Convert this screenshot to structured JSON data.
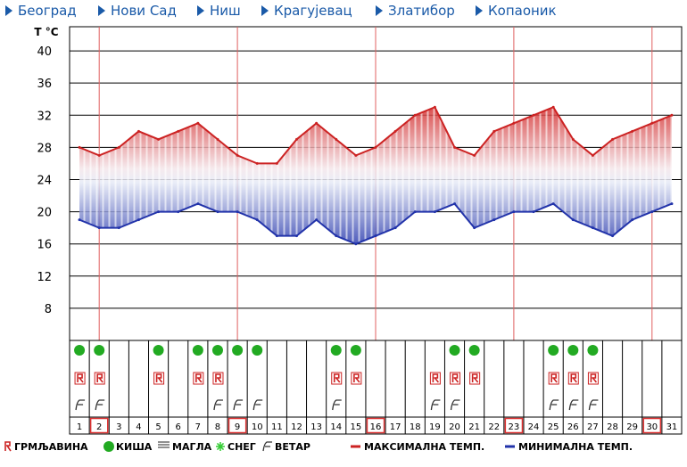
{
  "nav": [
    {
      "label": "Београд"
    },
    {
      "label": "Нови Сад"
    },
    {
      "label": "Ниш"
    },
    {
      "label": "Крагујевац"
    },
    {
      "label": "Златибор"
    },
    {
      "label": "Копаоник"
    }
  ],
  "colors": {
    "nav_link": "#1a5aa8",
    "max_line": "#cc2222",
    "min_line": "#2233aa",
    "rain": "#22aa22",
    "snow": "#33cc33",
    "highlight_box": "#dd3333",
    "week_line": "#e06060"
  },
  "chart_data": {
    "type": "line",
    "ylabel": "T °C",
    "ylim": [
      4,
      43
    ],
    "yticks": [
      8,
      12,
      16,
      20,
      24,
      28,
      32,
      36,
      40
    ],
    "days": [
      1,
      2,
      3,
      4,
      5,
      6,
      7,
      8,
      9,
      10,
      11,
      12,
      13,
      14,
      15,
      16,
      17,
      18,
      19,
      20,
      21,
      22,
      23,
      24,
      25,
      26,
      27,
      28,
      29,
      30,
      31
    ],
    "highlighted_days": [
      2,
      9,
      16,
      23,
      30
    ],
    "series": [
      {
        "values": [
          28,
          27,
          28,
          30,
          29,
          30,
          31,
          29,
          27,
          26,
          26,
          29,
          31,
          29,
          27,
          28,
          30,
          32,
          33,
          28,
          27,
          30,
          31,
          32,
          33,
          29,
          27,
          29,
          30,
          31,
          32
        ]
      },
      {
        "values": [
          19,
          18,
          18,
          19,
          20,
          20,
          21,
          20,
          20,
          19,
          17,
          17,
          19,
          17,
          16,
          17,
          18,
          20,
          20,
          21,
          18,
          19,
          20,
          20,
          21,
          19,
          18,
          17,
          19,
          20,
          21
        ]
      }
    ],
    "icons": {
      "rain": [
        1,
        2,
        5,
        7,
        8,
        9,
        10,
        14,
        15,
        20,
        21,
        25,
        26,
        27
      ],
      "storm": [
        1,
        2,
        5,
        7,
        8,
        14,
        15,
        19,
        20,
        21,
        25,
        26,
        27
      ],
      "wind": [
        1,
        2,
        8,
        9,
        10,
        14,
        19,
        20,
        25,
        26,
        27
      ]
    },
    "legend": [
      {
        "key": "storm",
        "label": "ГРМЉАВИНА"
      },
      {
        "key": "rain",
        "label": "КИША"
      },
      {
        "key": "fog",
        "label": "МАГЛА"
      },
      {
        "key": "snow",
        "label": "СНЕГ"
      },
      {
        "key": "wind",
        "label": "ВЕТАР"
      },
      {
        "key": "max",
        "label": "МАКСИМАЛНА ТЕМП."
      },
      {
        "key": "min",
        "label": "МИНИМАЛНА ТЕМП."
      }
    ]
  }
}
